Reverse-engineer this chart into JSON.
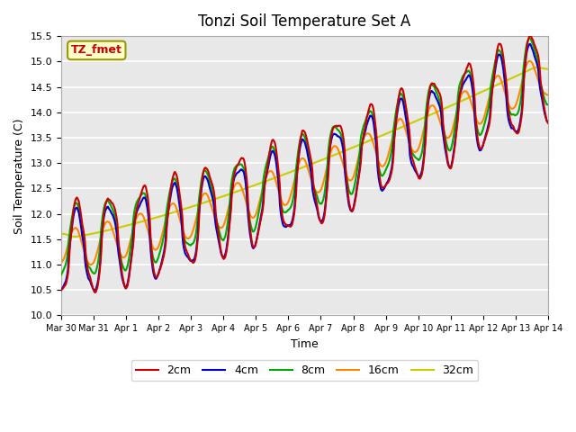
{
  "title": "Tonzi Soil Temperature Set A",
  "xlabel": "Time",
  "ylabel": "Soil Temperature (C)",
  "ylim": [
    10.0,
    15.5
  ],
  "yticks": [
    10.0,
    10.5,
    11.0,
    11.5,
    12.0,
    12.5,
    13.0,
    13.5,
    14.0,
    14.5,
    15.0,
    15.5
  ],
  "xtick_labels": [
    "Mar 30",
    "Mar 31",
    "Apr 1",
    "Apr 2",
    "Apr 3",
    "Apr 4",
    "Apr 5",
    "Apr 6",
    "Apr 7",
    "Apr 8",
    "Apr 9",
    "Apr 10",
    "Apr 11",
    "Apr 12",
    "Apr 13",
    "Apr 14"
  ],
  "colors": {
    "2cm": "#cc0000",
    "4cm": "#0000cc",
    "8cm": "#00aa00",
    "16cm": "#ff8800",
    "32cm": "#cccc00"
  },
  "legend_labels": [
    "2cm",
    "4cm",
    "8cm",
    "16cm",
    "32cm"
  ],
  "annotation_text": "TZ_fmet",
  "annotation_color": "#cc0000",
  "annotation_bg": "#ffffcc",
  "plot_bg": "#e8e8e8",
  "line_width": 1.5
}
